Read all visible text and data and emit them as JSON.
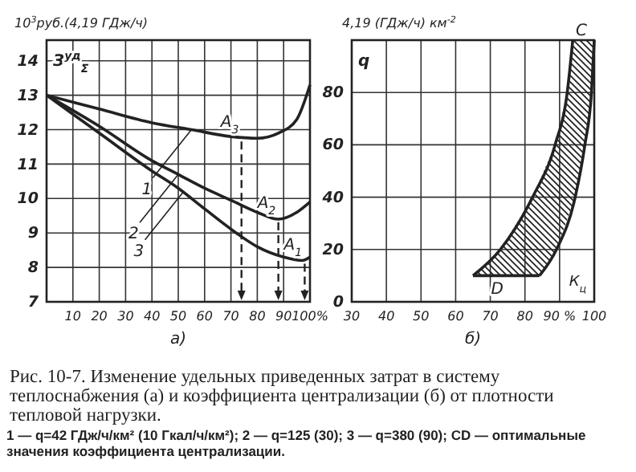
{
  "chart_data": [
    {
      "type": "line",
      "ylabel": "10$^{3}$руб.(4,19 ГДж/ч)",
      "xlabel": "а)",
      "xlim": [
        0,
        100
      ],
      "ylim": [
        7,
        14.6
      ],
      "xticks": [
        {
          "value": 0,
          "label": null
        },
        10,
        20,
        30,
        40,
        50,
        60,
        70,
        80,
        90,
        {
          "value": 100,
          "label": "100%"
        }
      ],
      "yticks": [
        7,
        8,
        9,
        10,
        11,
        12,
        13,
        14
      ],
      "grid": true,
      "line_style": "solid",
      "marker": "none",
      "series": [
        {
          "color": "#222222",
          "x": [
            0,
            20,
            40,
            55,
            70,
            80,
            88,
            95,
            100
          ],
          "values": [
            13,
            12.6,
            12.2,
            12.0,
            11.8,
            11.75,
            11.9,
            12.3,
            13.3
          ]
        },
        {
          "color": "#222222",
          "x": [
            0,
            20,
            40,
            50,
            60,
            70,
            80,
            88,
            95,
            100
          ],
          "values": [
            13,
            12.1,
            11.1,
            10.7,
            10.3,
            9.95,
            9.6,
            9.4,
            9.6,
            9.9
          ]
        },
        {
          "color": "#222222",
          "x": [
            0,
            20,
            40,
            50,
            60,
            72,
            80,
            90,
            97,
            100
          ],
          "values": [
            13,
            11.9,
            10.8,
            10.3,
            9.7,
            9.0,
            8.6,
            8.3,
            8.2,
            8.3
          ]
        }
      ],
      "annotations": [
        "З$^{уд}$$_{Σ}$",
        {
          "text": "A$_{3}$",
          "x": 74,
          "y": 11.75
        },
        {
          "text": "A$_{2}$",
          "x": 88,
          "y": 9.4
        },
        {
          "text": "A$_{1}$",
          "x": 98,
          "y": 8.2
        },
        {
          "text": "1",
          "x": 55,
          "y": 12.0
        },
        {
          "text": "2",
          "x": 50,
          "y": 10.7
        },
        {
          "text": "3",
          "x": 52,
          "y": 10.2
        },
        "Рис. 10-7. Изменение удельных приведенных затрат в систему теплоснабжения (а) и коэффициента централизации (б) от плотности тепловой нагрузки.",
        "1 — q=42 ГДж/ч/км² (10 Гкал/ч/км²); 2 — q=125 (30); 3 — q=380 (90); CD — оптимальные значения коэффициента централизации."
      ]
    },
    {
      "type": "line",
      "ylabel": "4,19 (ГДж/ч) км$^{-2}$",
      "xlabel": "б)",
      "xlim": [
        30,
        100
      ],
      "ylim": [
        0,
        100
      ],
      "xticks": [
        30,
        40,
        50,
        60,
        70,
        80,
        {
          "value": 90,
          "label": "90 %"
        },
        100
      ],
      "yticks": [
        0,
        20,
        40,
        60,
        80
      ],
      "grid": true,
      "series": [
        {
          "color": "#222222",
          "x": [
            65,
            72.9,
            82.2,
            88.7,
            92.2,
            93.8
          ],
          "values": [
            10,
            20,
            40,
            60,
            80,
            100
          ]
        },
        {
          "color": "#222222",
          "x": [
            84.2,
            89.1,
            94.5,
            97.3,
            99.2,
            100
          ],
          "values": [
            10,
            20,
            40,
            60,
            80,
            100
          ]
        }
      ],
      "annotations": [
        "q",
        "К$_{ц}$",
        "C",
        "D"
      ]
    }
  ]
}
